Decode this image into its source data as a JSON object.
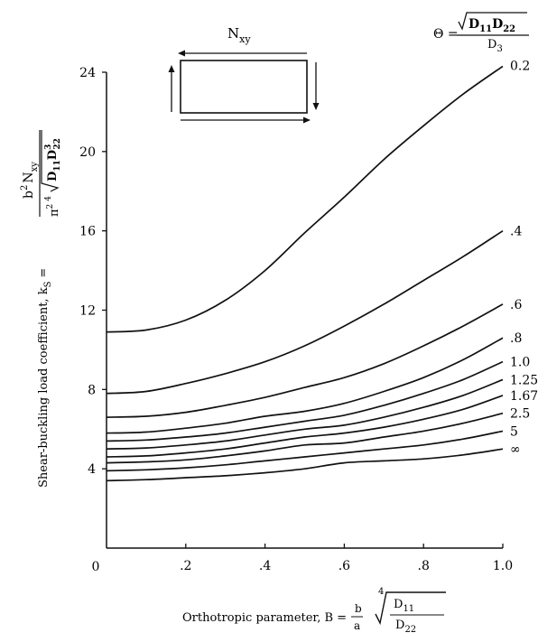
{
  "chart_data": {
    "type": "line",
    "xlabel": {
      "text": "Orthotropic parameter, B =",
      "frac_num": "b",
      "frac_den": "a",
      "root_index": "4",
      "root_num": "D",
      "root_num_sub": "11",
      "root_den": "D",
      "root_den_sub": "22"
    },
    "ylabel": {
      "text": "Shear-buckling load coefficient, k",
      "sub": "S",
      "eq": "=",
      "num": "b",
      "num_sup": "2",
      "num_n": "N",
      "num_sub": "xy",
      "den_pi": "π",
      "den_pi_sup": "2",
      "root_index": "4",
      "root_d1": "D",
      "root_d1_sub": "11",
      "root_d2": "D",
      "root_d2_sub": "22",
      "root_d2_sup": "3"
    },
    "theta_legend": {
      "symbol": "Θ =",
      "num_d1": "D",
      "num_d1_sub": "11",
      "num_d2": "D",
      "num_d2_sub": "22",
      "den": "D",
      "den_sub": "3"
    },
    "inset": {
      "label": "N",
      "label_sub": "xy"
    },
    "xlim": [
      0,
      1.0
    ],
    "ylim": [
      0,
      24
    ],
    "xticks": [
      {
        "value": 0.2,
        "label": ".2"
      },
      {
        "value": 0.4,
        "label": ".4"
      },
      {
        "value": 0.6,
        "label": ".6"
      },
      {
        "value": 0.8,
        "label": ".8"
      },
      {
        "value": 1.0,
        "label": "1.0"
      }
    ],
    "yticks": [
      {
        "value": 4,
        "label": "4"
      },
      {
        "value": 8,
        "label": "8"
      },
      {
        "value": 12,
        "label": "12"
      },
      {
        "value": 16,
        "label": "16"
      },
      {
        "value": 20,
        "label": "20"
      },
      {
        "value": 24,
        "label": "24"
      }
    ],
    "origin_label": "0",
    "x": [
      0,
      0.1,
      0.2,
      0.3,
      0.4,
      0.5,
      0.6,
      0.7,
      0.8,
      0.9,
      1.0
    ],
    "series": [
      {
        "label": "0.2",
        "values": [
          10.9,
          11.0,
          11.5,
          12.5,
          14.0,
          15.9,
          17.7,
          19.6,
          21.3,
          22.9,
          24.3
        ]
      },
      {
        "label": ".4",
        "values": [
          7.8,
          7.9,
          8.3,
          8.8,
          9.4,
          10.2,
          11.2,
          12.3,
          13.5,
          14.7,
          16.0
        ]
      },
      {
        "label": ".6",
        "values": [
          6.6,
          6.65,
          6.85,
          7.2,
          7.6,
          8.1,
          8.6,
          9.3,
          10.2,
          11.2,
          12.3
        ]
      },
      {
        "label": ".8",
        "values": [
          5.8,
          5.85,
          6.05,
          6.3,
          6.65,
          6.9,
          7.3,
          7.9,
          8.6,
          9.5,
          10.6
        ]
      },
      {
        "label": "1.0",
        "values": [
          5.4,
          5.45,
          5.6,
          5.8,
          6.1,
          6.4,
          6.7,
          7.2,
          7.8,
          8.5,
          9.4
        ]
      },
      {
        "label": "1.25",
        "values": [
          5.0,
          5.05,
          5.2,
          5.4,
          5.7,
          6.0,
          6.2,
          6.6,
          7.1,
          7.7,
          8.5
        ]
      },
      {
        "label": "1.67",
        "values": [
          4.6,
          4.65,
          4.8,
          5.0,
          5.3,
          5.6,
          5.8,
          6.1,
          6.5,
          7.0,
          7.7
        ]
      },
      {
        "label": "2.5",
        "values": [
          4.3,
          4.35,
          4.45,
          4.65,
          4.9,
          5.2,
          5.3,
          5.6,
          5.9,
          6.3,
          6.8
        ]
      },
      {
        "label": "5",
        "values": [
          3.9,
          3.95,
          4.05,
          4.2,
          4.4,
          4.6,
          4.8,
          5.0,
          5.2,
          5.5,
          5.9
        ]
      },
      {
        "label": "∞",
        "values": [
          3.4,
          3.45,
          3.55,
          3.65,
          3.8,
          4.0,
          4.3,
          4.4,
          4.5,
          4.7,
          5.0
        ]
      }
    ]
  }
}
